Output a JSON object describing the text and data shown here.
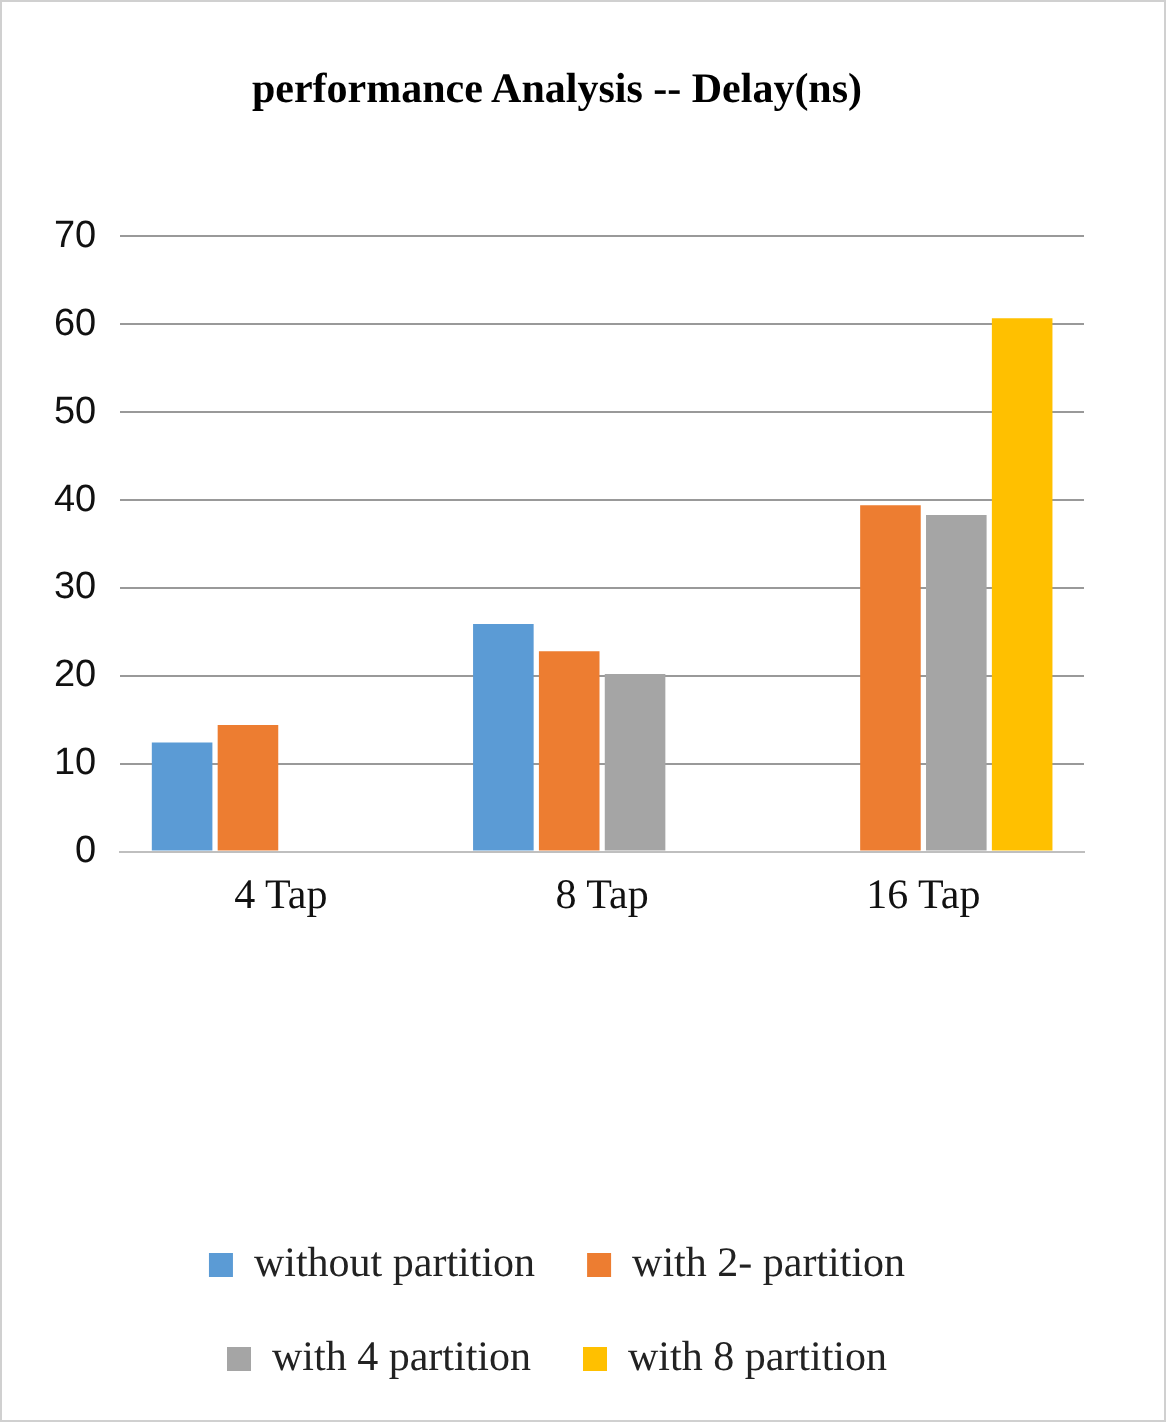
{
  "chart_data": {
    "type": "bar",
    "title": "performance Analysis -- Delay(ns)",
    "categories": [
      "4 Tap",
      "8 Tap",
      "16 Tap"
    ],
    "series": [
      {
        "name": "without partition",
        "color": "#5b9bd5",
        "values": [
          12.4,
          25.9,
          null
        ]
      },
      {
        "name": "with 2- partition",
        "color": "#ed7d31",
        "values": [
          14.4,
          22.8,
          39.4
        ]
      },
      {
        "name": "with 4 partition",
        "color": "#a5a5a5",
        "values": [
          null,
          20.2,
          38.3
        ]
      },
      {
        "name": "with 8 partition",
        "color": "#ffc000",
        "values": [
          null,
          null,
          60.7
        ]
      }
    ],
    "ylim": [
      0,
      70
    ],
    "yticks": [
      0,
      10,
      20,
      30,
      40,
      50,
      60,
      70
    ],
    "grid": "y",
    "legend": "bottom"
  }
}
